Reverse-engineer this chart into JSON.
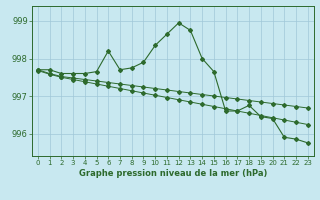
{
  "line1": [
    997.7,
    997.7,
    997.6,
    997.6,
    997.6,
    997.65,
    998.2,
    997.7,
    997.75,
    997.9,
    998.35,
    998.65,
    998.95,
    998.75,
    998.0,
    997.65,
    996.6,
    996.6,
    996.75,
    996.45,
    996.4,
    995.9,
    995.85,
    995.75
  ],
  "line2": [
    997.7,
    997.6,
    997.52,
    997.48,
    997.44,
    997.4,
    997.36,
    997.32,
    997.28,
    997.24,
    997.2,
    997.16,
    997.12,
    997.08,
    997.04,
    997.0,
    996.96,
    996.92,
    996.88,
    996.84,
    996.8,
    996.76,
    996.72,
    996.68
  ],
  "line3": [
    997.68,
    997.58,
    997.5,
    997.44,
    997.38,
    997.32,
    997.26,
    997.2,
    997.14,
    997.08,
    997.02,
    996.96,
    996.9,
    996.84,
    996.78,
    996.72,
    996.66,
    996.6,
    996.54,
    996.48,
    996.42,
    996.36,
    996.3,
    996.24
  ],
  "x": [
    0,
    1,
    2,
    3,
    4,
    5,
    6,
    7,
    8,
    9,
    10,
    11,
    12,
    13,
    14,
    15,
    16,
    17,
    18,
    19,
    20,
    21,
    22,
    23
  ],
  "line_color": "#2d6a2d",
  "bg_color": "#c8e8f0",
  "grid_color": "#a0c8d8",
  "title": "Graphe pression niveau de la mer (hPa)",
  "ylabel_ticks": [
    996,
    997,
    998,
    999
  ],
  "ylim": [
    995.4,
    999.4
  ],
  "xlim": [
    -0.5,
    23.5
  ]
}
